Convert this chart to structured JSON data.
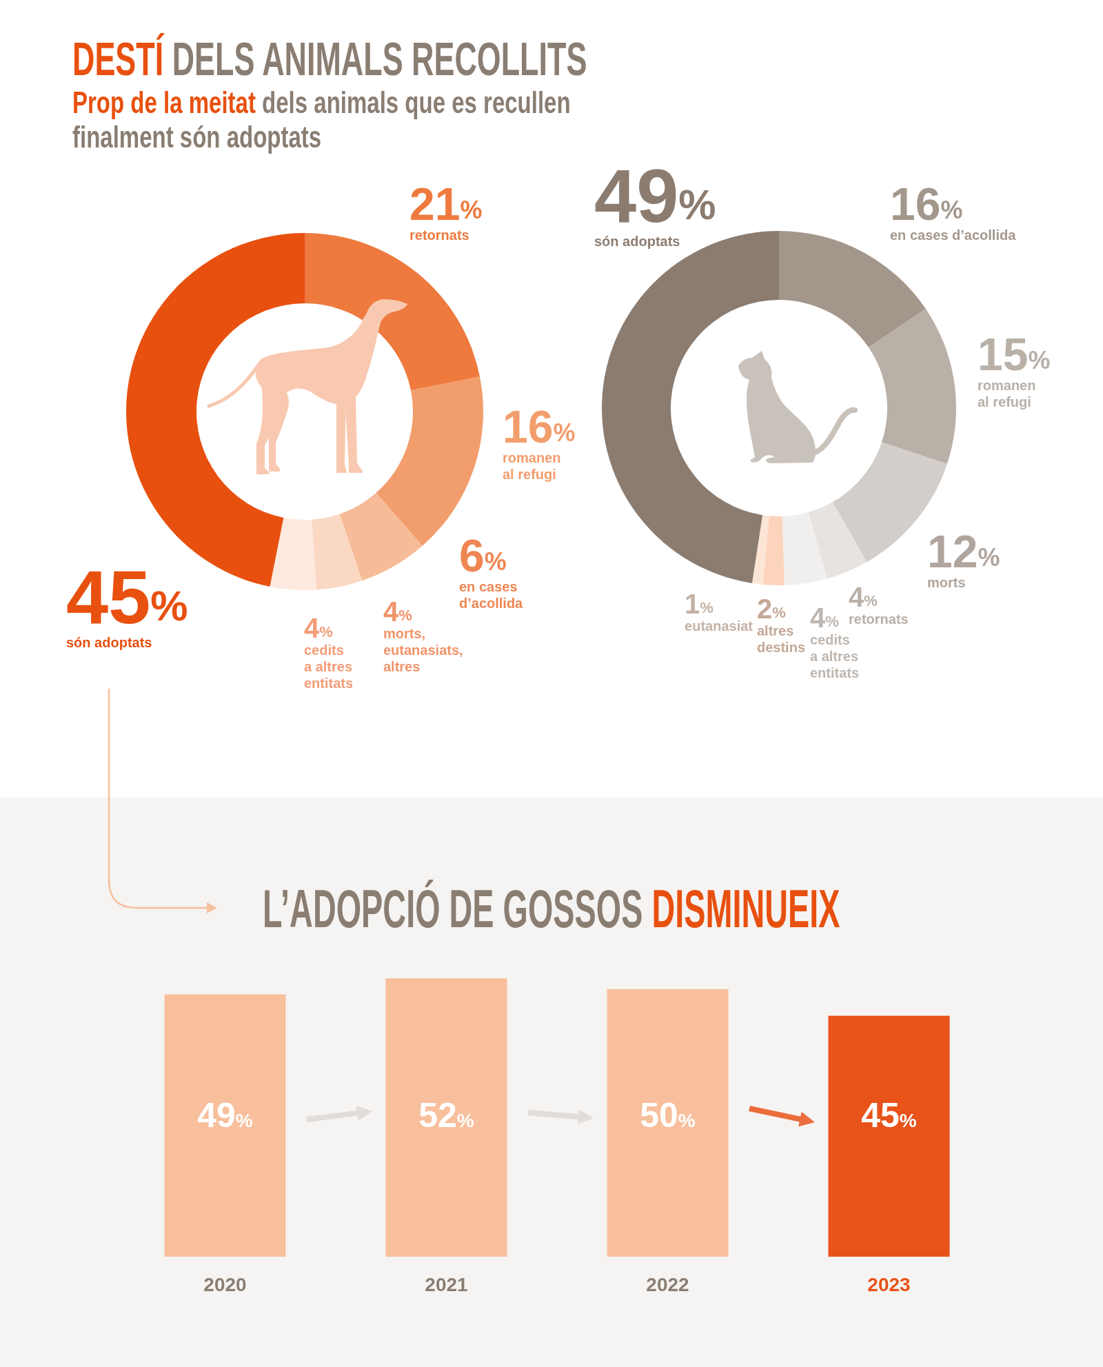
{
  "chart_data": [
    {
      "type": "donut",
      "title": "DESTÍ DELS ANIMALS RECOLLITS",
      "subtitle": "Prop de la meitat dels animals que es recullen finalment són adoptats",
      "categories": [
        "retornats",
        "romanen\nal refugi",
        "en cases\nd’acollida",
        "morts,\neutanasiats,\naltres",
        "cedits\na altres\nentitats",
        "són adoptats"
      ],
      "values": [
        21,
        16,
        6,
        4,
        4,
        45
      ],
      "value_labels": [
        "21%",
        "16%",
        "6%",
        "4%",
        "4%",
        "45%"
      ],
      "colors": [
        "#ee7a3e",
        "#f29d6c",
        "#f6bc97",
        "#fad8c4",
        "#fde9df",
        "#e8500f"
      ]
    },
    {
      "type": "donut",
      "categories": [
        "en cases d’acollida",
        "romanen\nal refugi",
        "morts",
        "retornats",
        "cedits\na altres\nentitats",
        "altres\ndestins",
        "eutanasiat",
        "són adoptats"
      ],
      "values": [
        16,
        15,
        12,
        4,
        4,
        2,
        1,
        49
      ],
      "value_labels": [
        "16%",
        "15%",
        "12%",
        "4%",
        "4%",
        "2%",
        "1%",
        "49%"
      ],
      "colors": [
        "#a3978c",
        "#b9b0a8",
        "#d3cec9",
        "#e6e3e0",
        "#f1efed",
        "#fcd4bc",
        "#fde5d6",
        "#8c7c70"
      ]
    },
    {
      "type": "bar",
      "title": "L’ADOPCIÓ DE GOSSOS DISMINUEIX",
      "categories": [
        "2020",
        "2021",
        "2022",
        "2023"
      ],
      "values": [
        49,
        52,
        50,
        45
      ],
      "value_labels": [
        "49%",
        "52%",
        "50%",
        "45%"
      ],
      "colors": [
        "#f8bf9d",
        "#f8bf9d",
        "#f8bf9d",
        "#e8531a"
      ],
      "tick_labels": "x"
    }
  ]
}
